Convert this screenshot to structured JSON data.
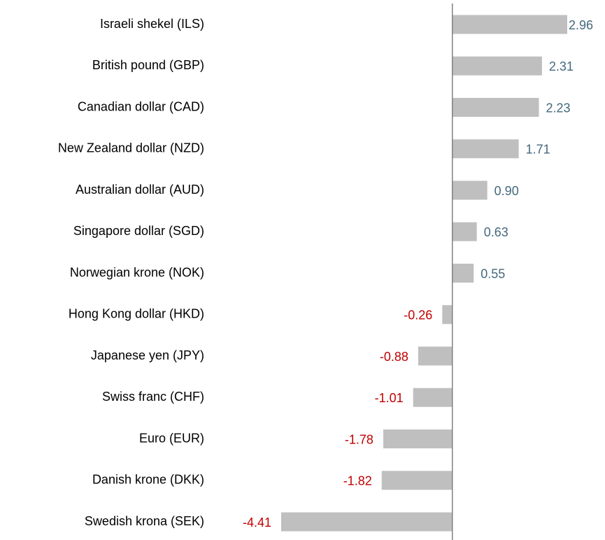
{
  "chart_data": {
    "type": "hbar",
    "categories": [
      "Israeli shekel (ILS)",
      "British pound (GBP)",
      "Canadian dollar (CAD)",
      "New Zealand dollar (NZD)",
      "Australian dollar (AUD)",
      "Singapore dollar (SGD)",
      "Norwegian krone (NOK)",
      "Hong Kong dollar (HKD)",
      "Japanese yen (JPY)",
      "Swiss franc (CHF)",
      "Euro (EUR)",
      "Danish krone (DKK)",
      "Swedish krona (SEK)"
    ],
    "values": [
      2.96,
      2.31,
      2.23,
      1.71,
      0.9,
      0.63,
      0.55,
      -0.26,
      -0.88,
      -1.01,
      -1.78,
      -1.82,
      -4.41
    ],
    "value_labels": [
      "2.96",
      "2.31",
      "2.23",
      "1.71",
      "0.90",
      "0.63",
      "0.55",
      "-0.26",
      "-0.88",
      "-1.01",
      "-1.78",
      "-1.82",
      "-4.41"
    ],
    "color": "#bfbfbf",
    "positive_label_color": "#44697d",
    "negative_label_color": "#c00000"
  }
}
